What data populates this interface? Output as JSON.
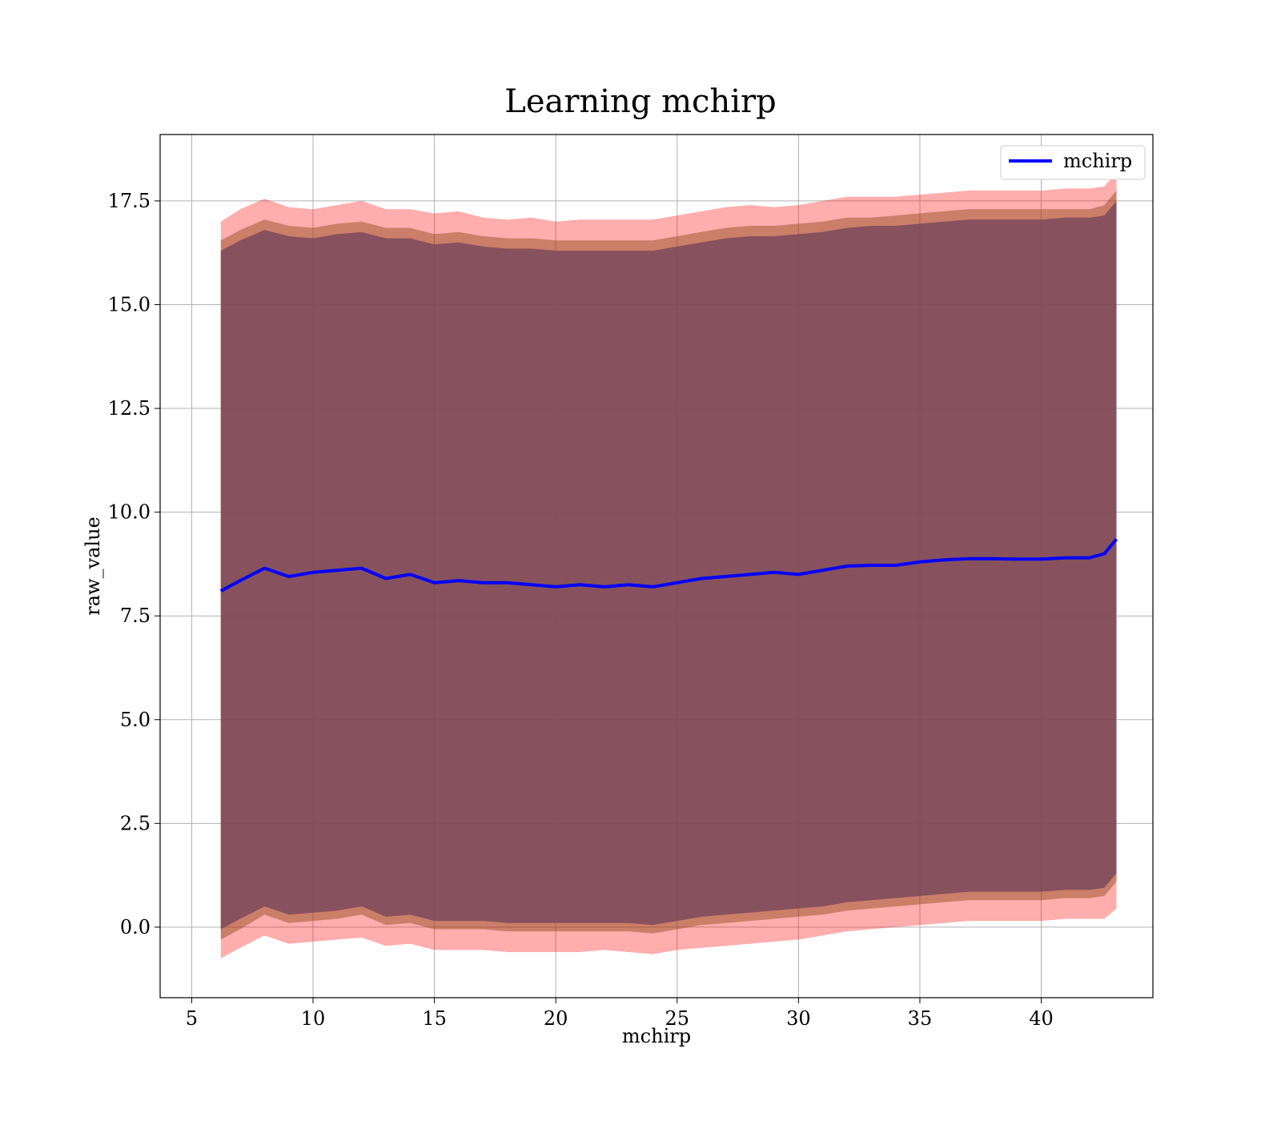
{
  "chart_data": {
    "type": "area",
    "title": "Learning mchirp",
    "xlabel": "mchirp",
    "ylabel": "raw_value",
    "xlim": [
      3.7,
      44.6
    ],
    "ylim": [
      -1.7,
      19.1
    ],
    "xticks": [
      5,
      10,
      15,
      20,
      25,
      30,
      35,
      40
    ],
    "xtick_labels": [
      "5",
      "10",
      "15",
      "20",
      "25",
      "30",
      "35",
      "40"
    ],
    "yticks": [
      0.0,
      2.5,
      5.0,
      7.5,
      10.0,
      12.5,
      15.0,
      17.5
    ],
    "ytick_labels": [
      "0.0",
      "2.5",
      "5.0",
      "7.5",
      "10.0",
      "12.5",
      "15.0",
      "17.5"
    ],
    "grid": true,
    "legend_position": "top-right",
    "x": [
      6.2,
      7.0,
      8.0,
      9.0,
      10.0,
      11.0,
      12.0,
      13.0,
      14.0,
      15.0,
      16.0,
      17.0,
      18.0,
      19.0,
      20.0,
      21.0,
      22.0,
      23.0,
      24.0,
      25.0,
      26.0,
      27.0,
      28.0,
      29.0,
      30.0,
      31.0,
      32.0,
      33.0,
      34.0,
      35.0,
      36.0,
      37.0,
      38.0,
      39.0,
      40.0,
      41.0,
      42.0,
      42.6,
      43.1
    ],
    "series": [
      {
        "name": "mchirp",
        "color": "#0000ff",
        "values": [
          8.1,
          8.35,
          8.65,
          8.45,
          8.55,
          8.6,
          8.65,
          8.4,
          8.5,
          8.3,
          8.35,
          8.3,
          8.3,
          8.25,
          8.2,
          8.25,
          8.2,
          8.25,
          8.2,
          8.3,
          8.4,
          8.45,
          8.5,
          8.55,
          8.5,
          8.6,
          8.7,
          8.72,
          8.72,
          8.8,
          8.85,
          8.88,
          8.88,
          8.87,
          8.87,
          8.9,
          8.9,
          9.0,
          9.35
        ]
      }
    ],
    "bands": [
      {
        "color": "#ff0000",
        "opacity": 0.32,
        "upper": [
          17.0,
          17.3,
          17.55,
          17.35,
          17.3,
          17.4,
          17.5,
          17.3,
          17.3,
          17.2,
          17.25,
          17.1,
          17.05,
          17.1,
          17.0,
          17.05,
          17.05,
          17.05,
          17.05,
          17.15,
          17.25,
          17.35,
          17.4,
          17.35,
          17.4,
          17.5,
          17.6,
          17.6,
          17.6,
          17.65,
          17.7,
          17.75,
          17.75,
          17.75,
          17.75,
          17.8,
          17.8,
          17.85,
          18.2
        ],
        "lower": [
          -0.75,
          -0.5,
          -0.2,
          -0.4,
          -0.35,
          -0.3,
          -0.25,
          -0.45,
          -0.4,
          -0.55,
          -0.55,
          -0.55,
          -0.6,
          -0.6,
          -0.6,
          -0.6,
          -0.55,
          -0.6,
          -0.65,
          -0.55,
          -0.5,
          -0.45,
          -0.4,
          -0.35,
          -0.3,
          -0.2,
          -0.1,
          -0.05,
          0.0,
          0.05,
          0.1,
          0.15,
          0.15,
          0.15,
          0.15,
          0.2,
          0.2,
          0.2,
          0.45
        ]
      },
      {
        "color": "#8b4513",
        "opacity": 0.45,
        "upper": [
          16.55,
          16.8,
          17.05,
          16.9,
          16.85,
          16.95,
          17.0,
          16.85,
          16.85,
          16.7,
          16.75,
          16.65,
          16.6,
          16.6,
          16.55,
          16.55,
          16.55,
          16.55,
          16.55,
          16.65,
          16.75,
          16.85,
          16.9,
          16.9,
          16.95,
          17.0,
          17.1,
          17.1,
          17.15,
          17.2,
          17.25,
          17.3,
          17.3,
          17.3,
          17.3,
          17.3,
          17.3,
          17.4,
          17.75
        ],
        "lower": [
          -0.3,
          -0.05,
          0.3,
          0.1,
          0.15,
          0.2,
          0.3,
          0.05,
          0.1,
          -0.05,
          -0.05,
          -0.05,
          -0.1,
          -0.1,
          -0.1,
          -0.1,
          -0.1,
          -0.1,
          -0.15,
          -0.05,
          0.05,
          0.1,
          0.15,
          0.2,
          0.25,
          0.3,
          0.4,
          0.45,
          0.5,
          0.55,
          0.6,
          0.65,
          0.65,
          0.65,
          0.65,
          0.7,
          0.7,
          0.75,
          1.1
        ]
      },
      {
        "color": "#7b4a5c",
        "opacity": 0.85,
        "upper": [
          16.3,
          16.55,
          16.8,
          16.65,
          16.6,
          16.7,
          16.75,
          16.6,
          16.6,
          16.45,
          16.5,
          16.4,
          16.35,
          16.35,
          16.3,
          16.3,
          16.3,
          16.3,
          16.3,
          16.4,
          16.5,
          16.6,
          16.65,
          16.65,
          16.7,
          16.75,
          16.85,
          16.9,
          16.9,
          16.95,
          17.0,
          17.05,
          17.05,
          17.05,
          17.05,
          17.1,
          17.1,
          17.15,
          17.5
        ],
        "lower": [
          -0.05,
          0.2,
          0.5,
          0.3,
          0.35,
          0.4,
          0.5,
          0.25,
          0.3,
          0.15,
          0.15,
          0.15,
          0.1,
          0.1,
          0.1,
          0.1,
          0.1,
          0.1,
          0.05,
          0.15,
          0.25,
          0.3,
          0.35,
          0.4,
          0.45,
          0.5,
          0.6,
          0.65,
          0.7,
          0.75,
          0.8,
          0.85,
          0.85,
          0.85,
          0.85,
          0.9,
          0.9,
          0.95,
          1.3
        ]
      }
    ]
  }
}
